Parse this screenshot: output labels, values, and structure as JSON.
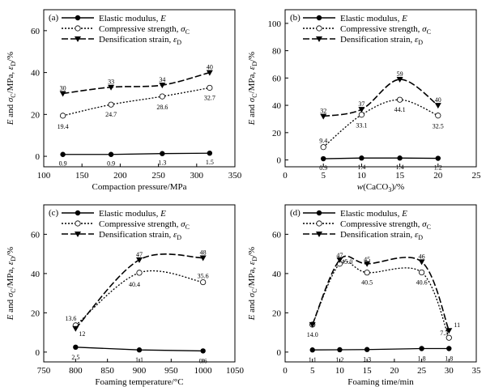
{
  "figure": {
    "axis_label_parts": {
      "y_main": "E",
      "y_and": " and ",
      "y_sigma": "σ",
      "y_sigma_sub": "C",
      "y_unit": "/MPa,  ",
      "y_eps": "ε",
      "y_eps_sub": "D",
      "y_pct": "/%",
      "wcaco3_w": "w",
      "wcaco3_rest": "(CaCO",
      "wcaco3_sub": "3",
      "wcaco3_end": ")/%"
    },
    "legend": {
      "elastic_prefix": "Elastic modulus, ",
      "elastic_sym": "E",
      "compressive_prefix": "Compressive strength, ",
      "compressive_sym": "σ",
      "compressive_sub": "C",
      "densification_prefix": "Densification strain, ",
      "densification_sym": "ε",
      "densification_sub": "D"
    }
  },
  "chart_data": [
    {
      "type": "line",
      "panel_label": "(a)",
      "xlabel": "Compaction pressure/MPa",
      "ylabel": "E and σC/MPa, εD/%",
      "xlim": [
        100,
        350
      ],
      "ylim": [
        -5,
        70
      ],
      "xticks": [
        100,
        150,
        200,
        250,
        300,
        350
      ],
      "yticks": [
        0,
        20,
        40,
        60
      ],
      "x": [
        125,
        188,
        255,
        317
      ],
      "series": [
        {
          "name": "Elastic modulus, E",
          "values": [
            0.9,
            0.9,
            1.3,
            1.5
          ],
          "labels": [
            "0.9",
            "0.9",
            "1.3",
            "1.5"
          ]
        },
        {
          "name": "Compressive strength, σC",
          "values": [
            19.4,
            24.7,
            28.6,
            32.7
          ],
          "labels": [
            "19.4",
            "24.7",
            "28.6",
            "32.7"
          ]
        },
        {
          "name": "Densification strain, εD",
          "values": [
            30,
            33,
            34,
            40
          ],
          "labels": [
            "30",
            "33",
            "34",
            "40"
          ]
        }
      ]
    },
    {
      "type": "line",
      "panel_label": "(b)",
      "xlabel": "w(CaCO3)/%",
      "ylabel": "E and σC/MPa, εD/%",
      "xlim": [
        0,
        25
      ],
      "ylim": [
        -5,
        110
      ],
      "xticks": [
        0,
        5,
        10,
        15,
        20,
        25
      ],
      "yticks": [
        0,
        20,
        40,
        60,
        80,
        100
      ],
      "x": [
        5,
        10,
        15,
        20
      ],
      "series": [
        {
          "name": "Elastic modulus, E",
          "values": [
            0.9,
            1.4,
            1.4,
            1.2
          ],
          "labels": [
            "0.9",
            "1.4",
            "1.4",
            "1.2"
          ]
        },
        {
          "name": "Compressive strength, σC",
          "values": [
            9.4,
            33.1,
            44.1,
            32.5
          ],
          "labels": [
            "9.4",
            "33.1",
            "44.1",
            "32.5"
          ]
        },
        {
          "name": "Densification strain, εD",
          "values": [
            32,
            37,
            59,
            40
          ],
          "labels": [
            "32",
            "37",
            "59",
            "40"
          ]
        }
      ]
    },
    {
      "type": "line",
      "panel_label": "(c)",
      "xlabel": "Foaming temperature/°C",
      "ylabel": "E and σC/MPa, εD/%",
      "xlim": [
        750,
        1050
      ],
      "ylim": [
        -5,
        75
      ],
      "xticks": [
        750,
        800,
        850,
        900,
        950,
        1000,
        1050
      ],
      "yticks": [
        0,
        20,
        40,
        60
      ],
      "x": [
        800,
        900,
        1000
      ],
      "series": [
        {
          "name": "Elastic modulus, E",
          "values": [
            2.5,
            1.1,
            0.6
          ],
          "labels": [
            "2.5",
            "1.1",
            "0.6"
          ]
        },
        {
          "name": "Compressive strength, σC",
          "values": [
            13.6,
            40.4,
            35.6
          ],
          "labels": [
            "13.6",
            "40.4",
            "35.6"
          ]
        },
        {
          "name": "Densification strain, εD",
          "values": [
            12,
            47,
            48
          ],
          "labels": [
            "12",
            "47",
            "48"
          ]
        }
      ]
    },
    {
      "type": "line",
      "panel_label": "(d)",
      "xlabel": "Foaming time/min",
      "ylabel": "E and σC/MPa, εD/%",
      "xlim": [
        0,
        35
      ],
      "ylim": [
        -5,
        75
      ],
      "xticks": [
        0,
        5,
        10,
        15,
        20,
        25,
        30,
        35
      ],
      "yticks": [
        0,
        20,
        40,
        60
      ],
      "x": [
        5,
        10,
        15,
        25,
        30
      ],
      "series": [
        {
          "name": "Elastic modulus, E",
          "values": [
            1.1,
            1.2,
            1.3,
            1.8,
            1.8
          ],
          "labels": [
            "1.1",
            "1.2",
            "1.3",
            "1.8",
            "1.8"
          ]
        },
        {
          "name": "Compressive strength, σC",
          "values": [
            14.0,
            45.0,
            40.5,
            40.6,
            7.3
          ],
          "labels": [
            "14.0",
            "45.0",
            "40.5",
            "40.6",
            "7.3"
          ]
        },
        {
          "name": "Densification strain, εD",
          "values": [
            14,
            47,
            45,
            46,
            11
          ],
          "labels": [
            "",
            "47",
            "45",
            "46",
            "11"
          ]
        }
      ]
    }
  ]
}
